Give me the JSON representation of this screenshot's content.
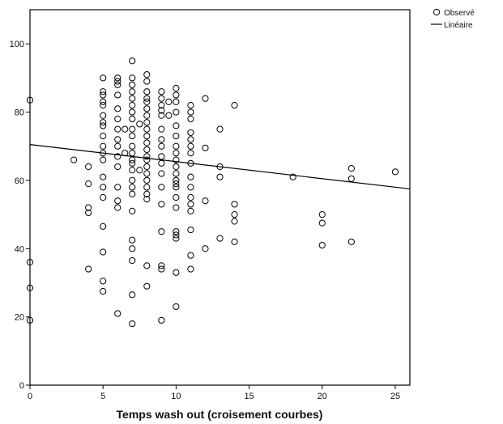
{
  "chart_data": {
    "type": "scatter",
    "xlabel": "Temps wash out (croisement courbes)",
    "ylabel": "",
    "xlim": [
      0,
      26
    ],
    "ylim": [
      0,
      110
    ],
    "xticks": [
      0,
      5,
      10,
      15,
      20,
      25
    ],
    "yticks": [
      0,
      20,
      40,
      60,
      80,
      100
    ],
    "tick_labels_x": [
      "0",
      "5",
      "10",
      "15",
      "20",
      "25"
    ],
    "tick_labels_y": [
      "0",
      "20",
      "40",
      "60",
      "80",
      "100"
    ],
    "grid": false,
    "legend": {
      "position": "top-right",
      "entries": [
        {
          "label": "Observé",
          "marker": "circle"
        },
        {
          "label": "Linéaire",
          "marker": "line"
        }
      ]
    },
    "series": [
      {
        "name": "Observé",
        "kind": "scatter",
        "points": [
          [
            0,
            83.5
          ],
          [
            0,
            36
          ],
          [
            0,
            28.5
          ],
          [
            0,
            19
          ],
          [
            3,
            66
          ],
          [
            4,
            64
          ],
          [
            4,
            59
          ],
          [
            4,
            52
          ],
          [
            4,
            50.5
          ],
          [
            4,
            34
          ],
          [
            5,
            90
          ],
          [
            5,
            86
          ],
          [
            5,
            85
          ],
          [
            5,
            83
          ],
          [
            5,
            82
          ],
          [
            5,
            79
          ],
          [
            5,
            77
          ],
          [
            5,
            76
          ],
          [
            5,
            73
          ],
          [
            5,
            70
          ],
          [
            5,
            68
          ],
          [
            5,
            66
          ],
          [
            5,
            61
          ],
          [
            5,
            58
          ],
          [
            5,
            55
          ],
          [
            5,
            46.5
          ],
          [
            5,
            39
          ],
          [
            5,
            30.5
          ],
          [
            5,
            27.5
          ],
          [
            6,
            90
          ],
          [
            6,
            89
          ],
          [
            6,
            88
          ],
          [
            6,
            85
          ],
          [
            6,
            81
          ],
          [
            6,
            78
          ],
          [
            6,
            75
          ],
          [
            6,
            72
          ],
          [
            6,
            70
          ],
          [
            6,
            67
          ],
          [
            6,
            64
          ],
          [
            6,
            58
          ],
          [
            6,
            54
          ],
          [
            6,
            52
          ],
          [
            6,
            21
          ],
          [
            6.5,
            75
          ],
          [
            6.5,
            68
          ],
          [
            7,
            95
          ],
          [
            7,
            90
          ],
          [
            7,
            88
          ],
          [
            7,
            86
          ],
          [
            7,
            84
          ],
          [
            7,
            82
          ],
          [
            7,
            80
          ],
          [
            7,
            78
          ],
          [
            7,
            75
          ],
          [
            7,
            73
          ],
          [
            7,
            70
          ],
          [
            7,
            68
          ],
          [
            7,
            66
          ],
          [
            7,
            65
          ],
          [
            7,
            63
          ],
          [
            7,
            60
          ],
          [
            7,
            58
          ],
          [
            7,
            56
          ],
          [
            7,
            51
          ],
          [
            7,
            42.5
          ],
          [
            7,
            40
          ],
          [
            7,
            36.5
          ],
          [
            7,
            26.5
          ],
          [
            7,
            18
          ],
          [
            7.5,
            76.5
          ],
          [
            7.5,
            63
          ],
          [
            8,
            91
          ],
          [
            8,
            89
          ],
          [
            8,
            86
          ],
          [
            8,
            84
          ],
          [
            8,
            83
          ],
          [
            8,
            81
          ],
          [
            8,
            79
          ],
          [
            8,
            77
          ],
          [
            8,
            75
          ],
          [
            8,
            73
          ],
          [
            8,
            71
          ],
          [
            8,
            69
          ],
          [
            8,
            67
          ],
          [
            8,
            66
          ],
          [
            8,
            64
          ],
          [
            8,
            62
          ],
          [
            8,
            60
          ],
          [
            8,
            58
          ],
          [
            8,
            56
          ],
          [
            8,
            54.5
          ],
          [
            8,
            35
          ],
          [
            8,
            29
          ],
          [
            9,
            86
          ],
          [
            9,
            84
          ],
          [
            9,
            82
          ],
          [
            9,
            80.5
          ],
          [
            9,
            79
          ],
          [
            9,
            75
          ],
          [
            9,
            72
          ],
          [
            9,
            70
          ],
          [
            9,
            67
          ],
          [
            9,
            65
          ],
          [
            9,
            62
          ],
          [
            9,
            58
          ],
          [
            9,
            53
          ],
          [
            9,
            45
          ],
          [
            9,
            35
          ],
          [
            9,
            34
          ],
          [
            9,
            19
          ],
          [
            9.5,
            83
          ],
          [
            9.5,
            79
          ],
          [
            10,
            87
          ],
          [
            10,
            85
          ],
          [
            10,
            83
          ],
          [
            10,
            80
          ],
          [
            10,
            76
          ],
          [
            10,
            73
          ],
          [
            10,
            70
          ],
          [
            10,
            68
          ],
          [
            10,
            66
          ],
          [
            10,
            64
          ],
          [
            10,
            62
          ],
          [
            10,
            60
          ],
          [
            10,
            59
          ],
          [
            10,
            58
          ],
          [
            10,
            55
          ],
          [
            10,
            52
          ],
          [
            10,
            45
          ],
          [
            10,
            44
          ],
          [
            10,
            43
          ],
          [
            10,
            33
          ],
          [
            10,
            23
          ],
          [
            11,
            82
          ],
          [
            11,
            80
          ],
          [
            11,
            78
          ],
          [
            11,
            74
          ],
          [
            11,
            72
          ],
          [
            11,
            70
          ],
          [
            11,
            68
          ],
          [
            11,
            65
          ],
          [
            11,
            61
          ],
          [
            11,
            58
          ],
          [
            11,
            55
          ],
          [
            11,
            53
          ],
          [
            11,
            51
          ],
          [
            11,
            45.5
          ],
          [
            11,
            38
          ],
          [
            11,
            34
          ],
          [
            12,
            84
          ],
          [
            12,
            69.5
          ],
          [
            12,
            54
          ],
          [
            12,
            40
          ],
          [
            13,
            75
          ],
          [
            13,
            64
          ],
          [
            13,
            61
          ],
          [
            13,
            43
          ],
          [
            14,
            82
          ],
          [
            14,
            53
          ],
          [
            14,
            50
          ],
          [
            14,
            48
          ],
          [
            14,
            42
          ],
          [
            18,
            61
          ],
          [
            20,
            50
          ],
          [
            20,
            47.5
          ],
          [
            20,
            41
          ],
          [
            22,
            63.5
          ],
          [
            22,
            60.5
          ],
          [
            22,
            42
          ],
          [
            25,
            62.5
          ]
        ]
      },
      {
        "name": "Linéaire",
        "kind": "line",
        "points": [
          [
            0,
            70.5
          ],
          [
            26,
            57.5
          ]
        ]
      }
    ]
  }
}
